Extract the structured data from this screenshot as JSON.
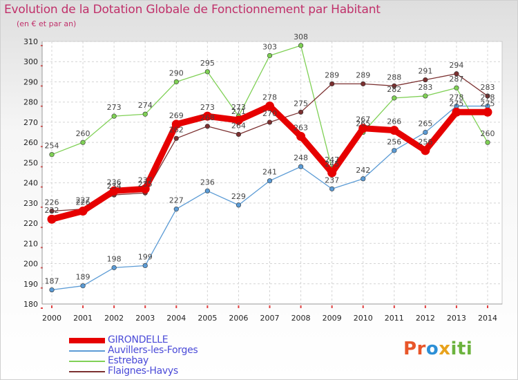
{
  "title": "Evolution de la Dotation Globale de Fonctionnement par Habitant",
  "subtitle": "(en € et par an)",
  "logo_text": "Proxiti",
  "chart_data": {
    "type": "line",
    "title": "Evolution de la Dotation Globale de Fonctionnement par Habitant",
    "subtitle": "(en € et par an)",
    "xlabel": "",
    "ylabel": "",
    "x": [
      "2000",
      "2001",
      "2002",
      "2003",
      "2004",
      "2005",
      "2006",
      "2007",
      "2008",
      "2009",
      "2010",
      "2011",
      "2012",
      "2013",
      "2014"
    ],
    "ylim": [
      180,
      310
    ],
    "yticks": [
      180,
      190,
      200,
      210,
      220,
      230,
      240,
      250,
      260,
      270,
      280,
      290,
      300,
      310
    ],
    "grid": true,
    "legend_position": "bottom-left",
    "series": [
      {
        "name": "GIRONDELLE",
        "color": "#e60000",
        "style": "thick",
        "values": [
          222,
          226,
          236,
          237,
          269,
          273,
          271,
          278,
          263,
          245,
          267,
          266,
          256,
          275,
          275
        ]
      },
      {
        "name": "Auvillers-les-Forges",
        "color": "#5b9bd5",
        "style": "thin",
        "values": [
          187,
          189,
          198,
          199,
          227,
          236,
          229,
          241,
          248,
          237,
          242,
          256,
          265,
          278,
          278
        ]
      },
      {
        "name": "Estrebay",
        "color": "#7fd055",
        "style": "thin",
        "values": [
          254,
          260,
          273,
          274,
          290,
          295,
          273,
          303,
          308,
          247,
          265,
          282,
          283,
          287,
          260
        ]
      },
      {
        "name": "Flaignes-Havys",
        "color": "#7b3030",
        "style": "thin",
        "values": [
          226,
          227,
          234,
          235,
          262,
          268,
          264,
          270,
          275,
          289,
          289,
          288,
          291,
          294,
          283
        ]
      }
    ]
  }
}
